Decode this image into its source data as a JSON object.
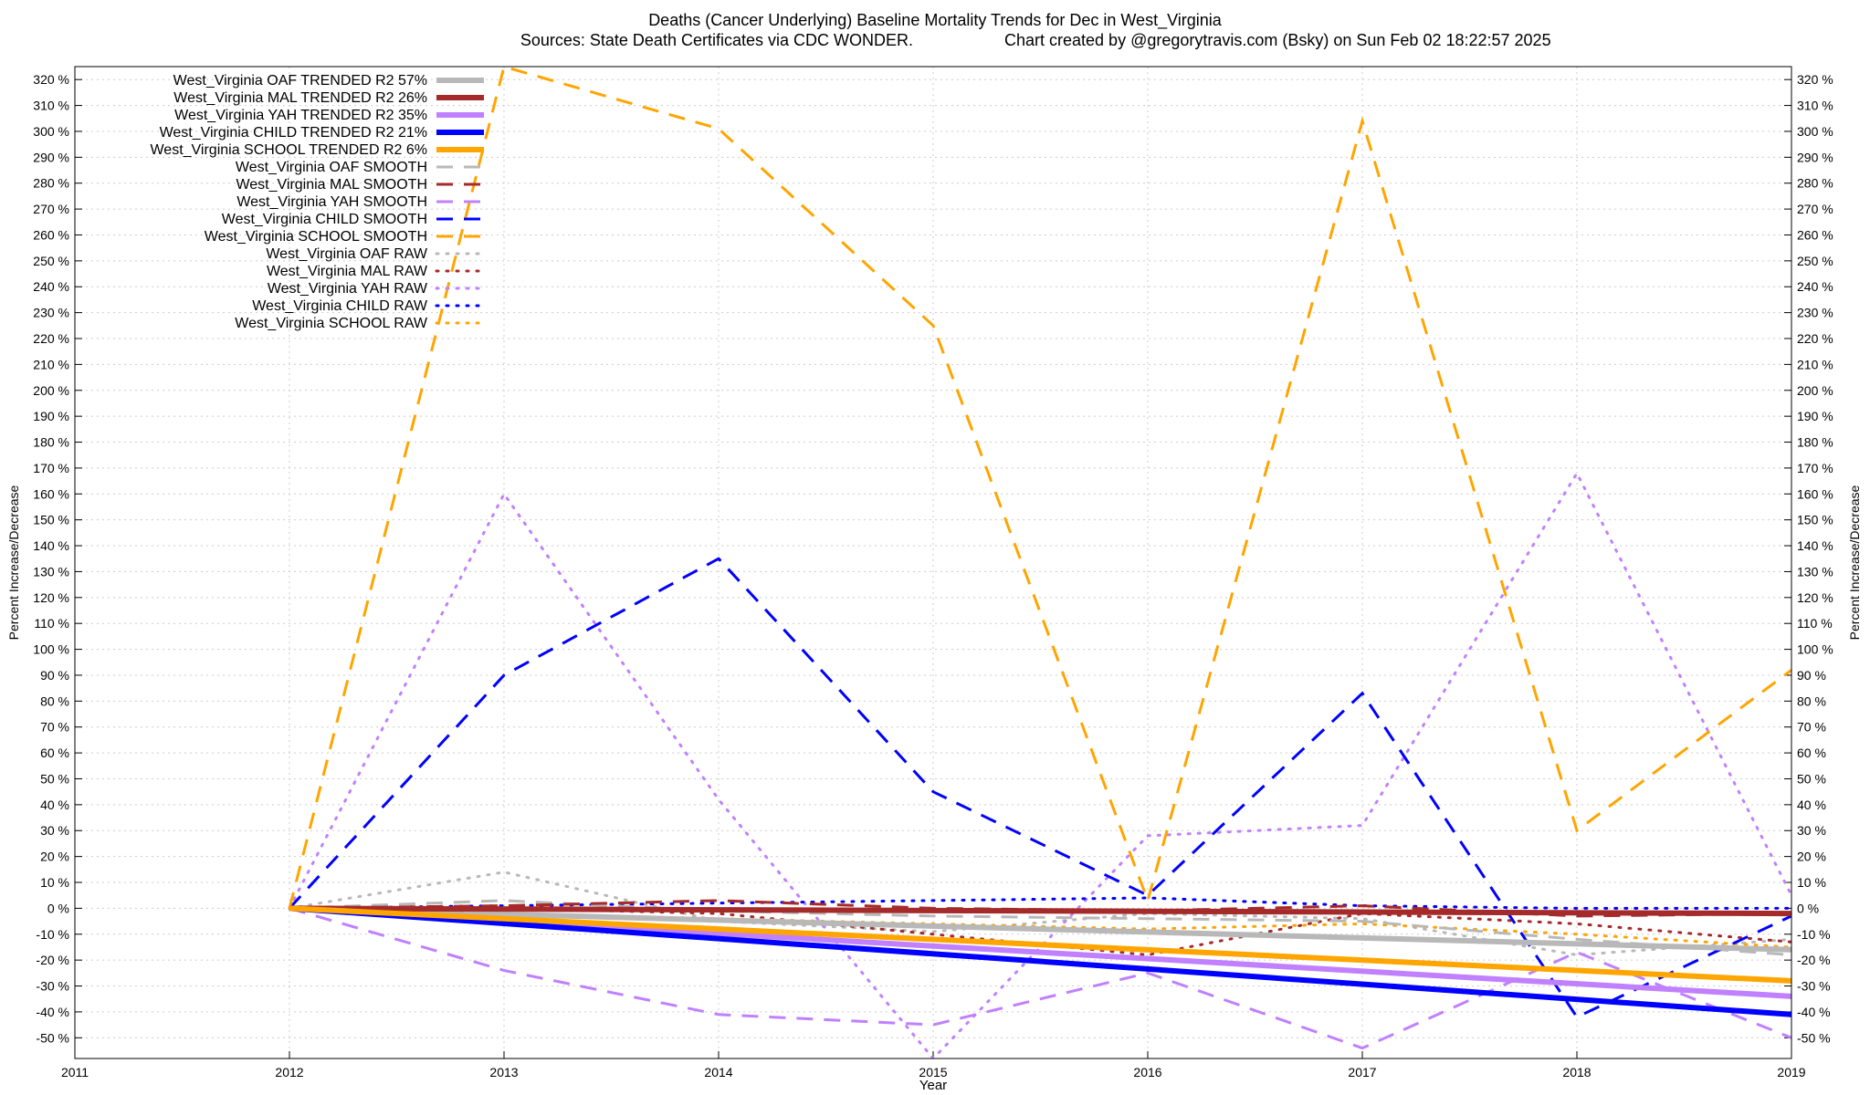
{
  "chart_data": {
    "type": "line",
    "title": "Deaths (Cancer Underlying)  Baseline Mortality Trends for Dec in West_Virginia",
    "sources": "Sources: State Death Certificates via CDC WONDER.",
    "credit": "Chart created by @gregorytravis.com (Bsky) on Sun Feb 02 18:22:57 2025",
    "xlabel": "Year",
    "ylabel": "Percent Increase/Decrease",
    "y2label": "Percent Increase/Decrease",
    "xlim": [
      2011,
      2019
    ],
    "ylim": [
      -58,
      325
    ],
    "x_ticks": [
      "2011",
      "2012",
      "2013",
      "2014",
      "2015",
      "2016",
      "2017",
      "2018",
      "2019"
    ],
    "y_ticks": [
      "320 %",
      "310 %",
      "300 %",
      "290 %",
      "280 %",
      "270 %",
      "260 %",
      "250 %",
      "240 %",
      "230 %",
      "220 %",
      "210 %",
      "200 %",
      "190 %",
      "180 %",
      "170 %",
      "160 %",
      "150 %",
      "140 %",
      "130 %",
      "120 %",
      "110 %",
      "100 %",
      "90 %",
      "80 %",
      "70 %",
      "60 %",
      "50 %",
      "40 %",
      "30 %",
      "20 %",
      "10 %",
      "0 %",
      "-10 %",
      "-20 %",
      "-30 %",
      "-40 %",
      "-50 %"
    ],
    "grid": true,
    "legend_position": "top-left",
    "series": [
      {
        "name": "West_Virginia OAF TRENDED R2  57%",
        "style": "solid",
        "color": "#b8b8b8",
        "x": [
          2012,
          2019
        ],
        "y": [
          0,
          -16
        ]
      },
      {
        "name": "West_Virginia MAL TRENDED R2  26%",
        "style": "solid",
        "color": "#a52a2a",
        "x": [
          2012,
          2019
        ],
        "y": [
          0,
          -2
        ]
      },
      {
        "name": "West_Virginia YAH TRENDED R2  35%",
        "style": "solid",
        "color": "#c080ff",
        "x": [
          2012,
          2019
        ],
        "y": [
          0,
          -34
        ]
      },
      {
        "name": "West_Virginia CHILD TRENDED R2  21%",
        "style": "solid",
        "color": "#0000ff",
        "x": [
          2012,
          2019
        ],
        "y": [
          0,
          -41
        ]
      },
      {
        "name": "West_Virginia SCHOOL TRENDED R2   6%",
        "style": "solid",
        "color": "#ffa500",
        "x": [
          2012,
          2019
        ],
        "y": [
          0,
          -28
        ]
      },
      {
        "name": "West_Virginia OAF SMOOTH",
        "style": "dashed",
        "color": "#b8b8b8",
        "x": [
          2012,
          2013,
          2014,
          2015,
          2016,
          2017,
          2018,
          2019
        ],
        "y": [
          0,
          3,
          -1,
          -3,
          -4,
          -5,
          -12,
          -18
        ]
      },
      {
        "name": "West_Virginia MAL SMOOTH",
        "style": "dashed",
        "color": "#a52a2a",
        "x": [
          2012,
          2013,
          2014,
          2015,
          2016,
          2017,
          2018,
          2019
        ],
        "y": [
          0,
          1,
          3,
          0,
          -1,
          1,
          -3,
          -2
        ]
      },
      {
        "name": "West_Virginia YAH SMOOTH",
        "style": "dashed",
        "color": "#c080ff",
        "x": [
          2012,
          2013,
          2014,
          2015,
          2016,
          2017,
          2018,
          2019
        ],
        "y": [
          0,
          -24,
          -41,
          -45,
          -25,
          -54,
          -17,
          -50
        ]
      },
      {
        "name": "West_Virginia CHILD SMOOTH",
        "style": "dashed",
        "color": "#0000ff",
        "x": [
          2012,
          2013,
          2014,
          2015,
          2016,
          2017,
          2018,
          2019
        ],
        "y": [
          0,
          90,
          135,
          45,
          5,
          83,
          -42,
          -3
        ]
      },
      {
        "name": "West_Virginia SCHOOL SMOOTH",
        "style": "dashed",
        "color": "#ffa500",
        "x": [
          2012,
          2013,
          2014,
          2015,
          2016,
          2017,
          2018,
          2019
        ],
        "y": [
          0,
          325,
          301,
          225,
          3,
          304,
          30,
          92
        ]
      },
      {
        "name": "West_Virginia OAF RAW",
        "style": "dotted",
        "color": "#b8b8b8",
        "x": [
          2012,
          2013,
          2014,
          2015,
          2016,
          2017,
          2018,
          2019
        ],
        "y": [
          0,
          14,
          -5,
          -9,
          -2,
          -4,
          -18,
          -12
        ]
      },
      {
        "name": "West_Virginia MAL RAW",
        "style": "dotted",
        "color": "#a52a2a",
        "x": [
          2012,
          2013,
          2014,
          2015,
          2016,
          2017,
          2018,
          2019
        ],
        "y": [
          0,
          0,
          -2,
          -10,
          -18,
          -2,
          -6,
          -13
        ]
      },
      {
        "name": "West_Virginia YAH RAW",
        "style": "dotted",
        "color": "#c080ff",
        "x": [
          2012,
          2013,
          2014,
          2015,
          2016,
          2017,
          2018,
          2019
        ],
        "y": [
          0,
          160,
          42,
          -58,
          28,
          32,
          168,
          5
        ]
      },
      {
        "name": "West_Virginia CHILD RAW",
        "style": "dotted",
        "color": "#0000ff",
        "x": [
          2012,
          2013,
          2014,
          2015,
          2016,
          2017,
          2018,
          2019
        ],
        "y": [
          0,
          1,
          2,
          3,
          4,
          1,
          0,
          0
        ]
      },
      {
        "name": "West_Virginia SCHOOL RAW",
        "style": "dotted",
        "color": "#ffa500",
        "x": [
          2012,
          2013,
          2014,
          2015,
          2016,
          2017,
          2018,
          2019
        ],
        "y": [
          0,
          -2,
          -4,
          -6,
          -8,
          -6,
          -10,
          -15
        ]
      }
    ]
  }
}
